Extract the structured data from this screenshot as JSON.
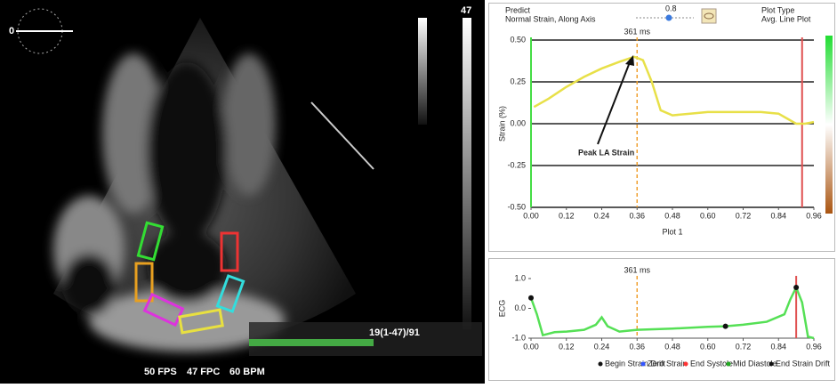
{
  "ui": {
    "scale_label": "0",
    "depth_label": "47",
    "frame_info": "19(1-47)/91",
    "fps": "50 FPS",
    "fpc": "47 FPC",
    "bpm": "60 BPM",
    "predict": "Predict",
    "mode": "Normal Strain, Along Axis",
    "slider_value": "0.8",
    "plot_type_label": "Plot Type",
    "plot_type": "Avg. Line Plot"
  },
  "chart_data": [
    {
      "type": "line",
      "ylabel": "Strain (%)",
      "xlabel": "Plot 1",
      "annotation": "Peak LA Strain",
      "marker_label": "361 ms",
      "marker_x": 0.36,
      "marker_color": "#f0a030",
      "x": [
        0.01,
        0.06,
        0.12,
        0.18,
        0.24,
        0.3,
        0.35,
        0.38,
        0.41,
        0.44,
        0.48,
        0.54,
        0.6,
        0.66,
        0.72,
        0.78,
        0.84,
        0.87,
        0.9,
        0.93,
        0.96
      ],
      "series": [
        {
          "color": "#e8e048",
          "values": [
            0.1,
            0.15,
            0.22,
            0.28,
            0.33,
            0.37,
            0.4,
            0.38,
            0.25,
            0.08,
            0.05,
            0.06,
            0.07,
            0.07,
            0.07,
            0.07,
            0.06,
            0.03,
            0.0,
            0.0,
            0.01
          ]
        }
      ],
      "vlines": [
        {
          "x": 0.0,
          "color": "#44dd44"
        },
        {
          "x": 0.92,
          "color": "#e05050"
        }
      ],
      "xlim": [
        0,
        0.96
      ],
      "ylim": [
        -0.5,
        0.5
      ],
      "xticks": [
        {
          "value": 0,
          "label": "0.00"
        },
        0.12,
        0.24,
        0.36,
        0.48,
        {
          "value": 0.6,
          "label": "0.60"
        },
        0.72,
        0.84,
        0.96
      ],
      "yticks": [
        {
          "value": 0.5,
          "label": "0.50"
        },
        0.25,
        {
          "value": 0,
          "label": "0.00"
        },
        -0.25,
        {
          "value": -0.5,
          "label": "-0.50"
        }
      ],
      "grid": true
    },
    {
      "type": "line",
      "ylabel": "ECG",
      "marker_label": "361 ms",
      "marker_x": 0.36,
      "marker_color": "#f0a030",
      "x": [
        0.0,
        0.02,
        0.04,
        0.08,
        0.12,
        0.18,
        0.22,
        0.24,
        0.26,
        0.3,
        0.36,
        0.48,
        0.6,
        0.66,
        0.72,
        0.8,
        0.86,
        0.88,
        0.9,
        0.92,
        0.94,
        0.96
      ],
      "series": [
        {
          "color": "#55e055",
          "values": [
            0.35,
            -0.2,
            -0.9,
            -0.8,
            -0.78,
            -0.72,
            -0.55,
            -0.3,
            -0.6,
            -0.78,
            -0.72,
            -0.68,
            -0.62,
            -0.6,
            -0.55,
            -0.45,
            -0.2,
            0.3,
            0.7,
            0.2,
            -0.95,
            -1.0
          ]
        }
      ],
      "points": [
        {
          "x": 0.0,
          "y": 0.35,
          "color": "#111111"
        },
        {
          "x": 0.66,
          "y": -0.6,
          "color": "#111111"
        },
        {
          "x": 0.9,
          "y": 0.7,
          "color": "#111111"
        }
      ],
      "vlines": [
        {
          "x": 0.9,
          "color": "#e05050"
        }
      ],
      "legend": [
        {
          "name": "Begin Strain Drift",
          "color": "#111111"
        },
        {
          "name": "Zero Strain",
          "color": "#3355ff"
        },
        {
          "name": "End Systole",
          "color": "#ff3333"
        },
        {
          "name": "Mid Diastole",
          "color": "#22aa22"
        },
        {
          "name": "End Strain Drift",
          "color": "#111111"
        }
      ],
      "xlim": [
        0,
        0.96
      ],
      "ylim": [
        -1,
        1
      ],
      "xticks": [
        {
          "value": 0,
          "label": "0.00"
        },
        0.12,
        0.24,
        0.36,
        0.48,
        {
          "value": 0.6,
          "label": "0.60"
        },
        0.72,
        0.84,
        0.96
      ],
      "yticks": [
        {
          "value": 1,
          "label": "1.0"
        },
        {
          "value": 0,
          "label": "0.0"
        },
        {
          "value": -1,
          "label": "-1.0"
        }
      ],
      "grid": false
    }
  ]
}
